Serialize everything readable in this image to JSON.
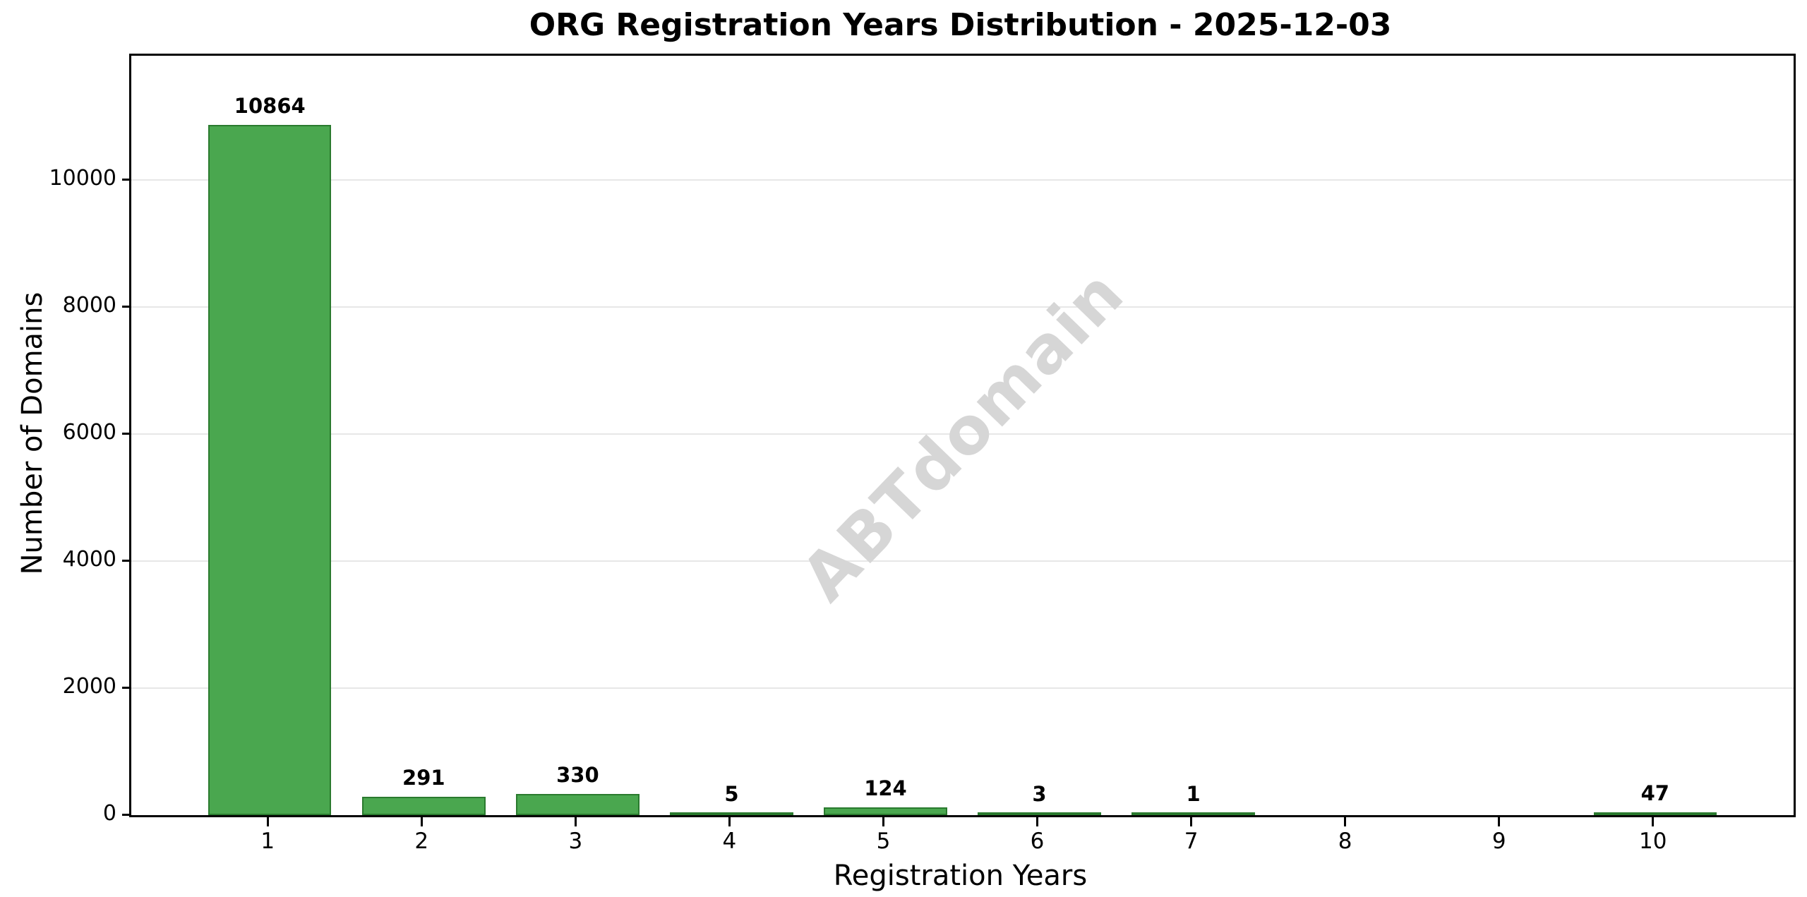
{
  "chart_data": {
    "type": "bar",
    "title": "ORG Registration Years Distribution - 2025-12-03",
    "xlabel": "Registration Years",
    "ylabel": "Number of Domains",
    "categories": [
      "1",
      "2",
      "3",
      "4",
      "5",
      "6",
      "7",
      "8",
      "9",
      "10"
    ],
    "values": [
      10864,
      291,
      330,
      5,
      124,
      3,
      1,
      0,
      0,
      47
    ],
    "bar_value_labels": [
      "10864",
      "291",
      "330",
      "5",
      "124",
      "3",
      "1",
      "",
      "",
      "47"
    ],
    "yticks": [
      0,
      2000,
      4000,
      6000,
      8000,
      10000
    ],
    "ylim": [
      0,
      11950
    ],
    "xlim": [
      0.1,
      10.9
    ],
    "bar_width_units": 0.8,
    "grid": "horizontal",
    "legend_position": "none",
    "watermark": "ABTdomain",
    "colors": {
      "bar_fill": "#4aa74f",
      "bar_edge": "#2a7a2e",
      "grid": "#e7e7e7",
      "axis": "#000000",
      "watermark": "#d6d6d6",
      "background": "#ffffff"
    }
  }
}
